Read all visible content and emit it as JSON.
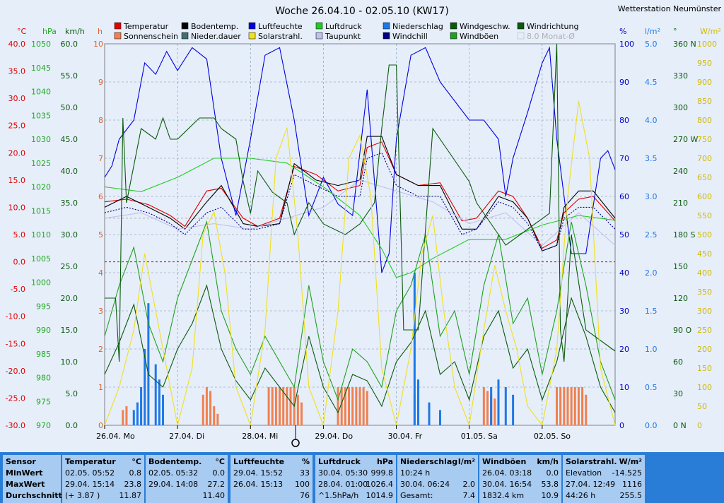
{
  "title": "Woche 26.04.10 - 02.05.10 (KW17)",
  "station": "Wetterstation Neumünster",
  "legend": [
    {
      "label": "Temperatur",
      "color": "#e00000"
    },
    {
      "label": "Bodentemp.",
      "color": "#000000"
    },
    {
      "label": "Luftfeuchte",
      "color": "#0000e0"
    },
    {
      "label": "Luftdruck",
      "color": "#22cc22"
    },
    {
      "label": "Niederschlag",
      "color": "#1e78e6"
    },
    {
      "label": "Windgeschw.",
      "color": "#0a5a0a"
    },
    {
      "label": "Windrichtung",
      "color": "#0a5a0a"
    },
    {
      "label": "Sonnenschein",
      "color": "#f08050"
    },
    {
      "label": "Nieder.dauer",
      "color": "#407070"
    },
    {
      "label": "Solarstrahl.",
      "color": "#f0e020"
    },
    {
      "label": "Taupunkt",
      "color": "#c0c0f0"
    },
    {
      "label": "Windchill",
      "color": "#000080"
    },
    {
      "label": "Windböen",
      "color": "#20a020"
    },
    {
      "label": "8.0 Monat-Ø",
      "color": "#b0b0b0"
    }
  ],
  "axis_units": {
    "temp": "°C",
    "pressure": "hPa",
    "wind": "km/h",
    "hours": "h",
    "humidity": "%",
    "rain": "l/m²",
    "direction": "°",
    "solar": "W/m²"
  },
  "axes": {
    "temp": [
      "40.0",
      "35.0",
      "30.0",
      "25.0",
      "20.0",
      "15.0",
      "10.0",
      "5.0",
      "0.0",
      "-5.0",
      "-10.0",
      "-15.0",
      "-20.0",
      "-25.0",
      "-30.0"
    ],
    "pressure": [
      "1050",
      "1045",
      "1040",
      "1035",
      "1030",
      "1025",
      "1020",
      "1015",
      "1010",
      "1005",
      "1000",
      "995",
      "990",
      "985",
      "980",
      "975",
      "970"
    ],
    "wind": [
      "60.0",
      "55.0",
      "50.0",
      "45.0",
      "40.0",
      "35.0",
      "30.0",
      "25.0",
      "20.0",
      "15.0",
      "10.0",
      "5.0",
      "0.0"
    ],
    "hours": [
      "10",
      "9",
      "8",
      "7",
      "6",
      "5",
      "4",
      "3",
      "2",
      "1",
      "0"
    ],
    "humidity": [
      "100",
      "90",
      "80",
      "70",
      "60",
      "50",
      "40",
      "30",
      "20",
      "10",
      "0"
    ],
    "rain": [
      "5.0",
      "4.5",
      "4.0",
      "3.5",
      "3.0",
      "2.5",
      "2.0",
      "1.5",
      "1.0",
      "0.5",
      "0.0"
    ],
    "direction": [
      "360 N",
      "330",
      "300",
      "270 W",
      "240",
      "210",
      "180 S",
      "150",
      "120",
      "90 O",
      "60",
      "30",
      "0 N"
    ],
    "solar": [
      "1000",
      "950",
      "900",
      "850",
      "800",
      "750",
      "700",
      "650",
      "600",
      "550",
      "500",
      "450",
      "400",
      "350",
      "300",
      "250",
      "200",
      "150",
      "100",
      "50",
      "0"
    ]
  },
  "x_labels": [
    "26.04. Mo",
    "27.04. Di",
    "28.04. Mi",
    "29.04. Do",
    "30.04. Fr",
    "01.05. Sa",
    "02.05. So"
  ],
  "chart_data": {
    "type": "line",
    "x_range_days": [
      0,
      7
    ],
    "series": [
      {
        "name": "Temperatur",
        "axis": "temp",
        "color": "#e00000",
        "x": [
          0,
          0.3,
          0.6,
          0.9,
          1.1,
          1.4,
          1.6,
          1.9,
          2.1,
          2.4,
          2.6,
          2.9,
          3.2,
          3.5,
          3.6,
          3.8,
          4.0,
          4.3,
          4.6,
          4.9,
          5.1,
          5.4,
          5.6,
          5.8,
          6.0,
          6.2,
          6.3,
          6.5,
          6.7,
          7.0
        ],
        "y": [
          11,
          11.5,
          10.5,
          8.5,
          6.5,
          13,
          13.5,
          8.0,
          6.5,
          8.0,
          17.5,
          16,
          13,
          14,
          21,
          22,
          16,
          14,
          14.5,
          7.5,
          8.0,
          13,
          12,
          8,
          2.5,
          4,
          9,
          11.5,
          12,
          7.5
        ]
      },
      {
        "name": "Bodentemp.",
        "axis": "temp",
        "color": "#000000",
        "x": [
          0,
          0.3,
          0.6,
          0.9,
          1.1,
          1.4,
          1.6,
          1.9,
          2.1,
          2.4,
          2.6,
          2.9,
          3.2,
          3.5,
          3.6,
          3.8,
          4.0,
          4.3,
          4.6,
          4.9,
          5.1,
          5.4,
          5.6,
          5.8,
          6.0,
          6.2,
          6.3,
          6.5,
          6.7,
          7.0
        ],
        "y": [
          10,
          12,
          10,
          8,
          6,
          11,
          14,
          7,
          6.5,
          7,
          18,
          15,
          14,
          15,
          23,
          23,
          16,
          14,
          14,
          6,
          6,
          12,
          11,
          8,
          2,
          3,
          10,
          13,
          13,
          8
        ]
      },
      {
        "name": "Taupunkt",
        "axis": "temp",
        "color": "#c0c0f0",
        "x": [
          0,
          0.5,
          1.0,
          1.5,
          2.0,
          2.5,
          3.0,
          3.5,
          4.0,
          4.5,
          5.0,
          5.5,
          6.0,
          6.5,
          7.0
        ],
        "y": [
          8,
          9,
          6,
          7,
          6,
          8,
          10,
          15,
          13,
          11,
          7,
          9,
          3,
          9,
          3
        ]
      },
      {
        "name": "Windchill",
        "axis": "temp",
        "color": "#000080",
        "x": [
          0,
          0.3,
          0.6,
          0.9,
          1.1,
          1.4,
          1.6,
          1.9,
          2.1,
          2.4,
          2.6,
          2.9,
          3.2,
          3.5,
          3.6,
          3.8,
          4.0,
          4.3,
          4.6,
          4.9,
          5.1,
          5.4,
          5.6,
          5.8,
          6.0,
          6.2,
          6.3,
          6.5,
          6.7,
          7.0
        ],
        "y": [
          9,
          10,
          9,
          7,
          5,
          9,
          10,
          6,
          6,
          7,
          16,
          14,
          12,
          12,
          19,
          20,
          14,
          12,
          12,
          5,
          6,
          11,
          10,
          7,
          2,
          3,
          8,
          10,
          10,
          6
        ]
      },
      {
        "name": "Luftfeuchte",
        "axis": "humidity",
        "color": "#0000e0",
        "x": [
          0,
          0.1,
          0.2,
          0.4,
          0.55,
          0.7,
          0.85,
          1.0,
          1.2,
          1.4,
          1.6,
          1.8,
          2.0,
          2.2,
          2.4,
          2.6,
          2.8,
          3.0,
          3.2,
          3.4,
          3.6,
          3.8,
          3.9,
          4.0,
          4.2,
          4.4,
          4.6,
          4.8,
          5.0,
          5.2,
          5.4,
          5.5,
          5.6,
          5.8,
          6.0,
          6.1,
          6.2,
          6.4,
          6.6,
          6.8,
          6.9,
          7.0
        ],
        "y": [
          65,
          68,
          75,
          80,
          95,
          92,
          98,
          93,
          99,
          96,
          70,
          55,
          75,
          97,
          99,
          80,
          55,
          65,
          58,
          55,
          88,
          40,
          45,
          75,
          97,
          99,
          90,
          85,
          80,
          80,
          75,
          60,
          70,
          82,
          95,
          99,
          75,
          45,
          45,
          70,
          72,
          67
        ]
      },
      {
        "name": "Luftdruck",
        "axis": "pressure",
        "color": "#22cc22",
        "x": [
          0,
          0.5,
          1.0,
          1.5,
          2.0,
          2.5,
          3.0,
          3.5,
          3.8,
          4.0,
          4.2,
          4.5,
          5.0,
          5.5,
          6.0,
          6.5,
          7.0
        ],
        "y": [
          1020,
          1019,
          1022,
          1026,
          1026,
          1025,
          1020,
          1014,
          1007,
          1001,
          1002,
          1005,
          1009,
          1009,
          1012,
          1014,
          1013
        ]
      },
      {
        "name": "Windgeschw.",
        "axis": "wind",
        "color": "#0a5a0a",
        "x": [
          0,
          0.2,
          0.4,
          0.6,
          0.8,
          1.0,
          1.2,
          1.4,
          1.6,
          1.8,
          2.0,
          2.2,
          2.4,
          2.6,
          2.8,
          3.0,
          3.2,
          3.4,
          3.6,
          3.8,
          4.0,
          4.2,
          4.4,
          4.6,
          4.8,
          5.0,
          5.2,
          5.4,
          5.6,
          5.8,
          6.0,
          6.2,
          6.4,
          6.6,
          6.8,
          7.0
        ],
        "y": [
          8,
          13,
          19,
          8,
          6,
          12,
          16,
          22,
          12,
          7,
          4,
          9,
          6,
          3,
          14,
          6,
          2,
          8,
          7,
          3,
          10,
          13,
          18,
          8,
          10,
          4,
          14,
          18,
          9,
          12,
          4,
          10,
          20,
          14,
          6,
          2
        ]
      },
      {
        "name": "Windböen",
        "axis": "wind",
        "color": "#20a020",
        "x": [
          0,
          0.2,
          0.4,
          0.6,
          0.8,
          1.0,
          1.2,
          1.4,
          1.6,
          1.8,
          2.0,
          2.2,
          2.4,
          2.6,
          2.8,
          3.0,
          3.2,
          3.4,
          3.6,
          3.8,
          4.0,
          4.2,
          4.4,
          4.6,
          4.8,
          5.0,
          5.2,
          5.4,
          5.6,
          5.8,
          6.0,
          6.2,
          6.4,
          6.6,
          6.8,
          7.0
        ],
        "y": [
          14,
          22,
          28,
          16,
          10,
          20,
          26,
          32,
          18,
          12,
          8,
          14,
          10,
          6,
          22,
          10,
          4,
          12,
          10,
          6,
          18,
          22,
          30,
          14,
          18,
          8,
          22,
          30,
          16,
          20,
          8,
          18,
          32,
          22,
          10,
          4
        ]
      },
      {
        "name": "Windrichtung",
        "axis": "direction",
        "color": "#0a5a0a",
        "x": [
          0,
          0.15,
          0.2,
          0.25,
          0.3,
          0.5,
          0.7,
          0.8,
          0.9,
          1.0,
          1.3,
          1.5,
          1.6,
          1.8,
          1.9,
          2.0,
          2.1,
          2.3,
          2.5,
          2.6,
          2.8,
          3.0,
          3.3,
          3.5,
          3.7,
          3.8,
          3.9,
          4.0,
          4.1,
          4.2,
          4.3,
          4.5,
          4.7,
          4.9,
          5.0,
          5.1,
          5.3,
          5.5,
          5.7,
          5.9,
          6.1,
          6.2,
          6.25,
          6.3,
          6.4,
          6.6,
          6.8,
          7.0
        ],
        "y": [
          120,
          120,
          60,
          290,
          210,
          280,
          270,
          290,
          270,
          270,
          290,
          290,
          280,
          270,
          230,
          200,
          240,
          220,
          210,
          180,
          210,
          190,
          180,
          190,
          210,
          280,
          340,
          340,
          90,
          90,
          90,
          280,
          260,
          240,
          230,
          210,
          190,
          170,
          180,
          190,
          200,
          360,
          90,
          60,
          180,
          90,
          80,
          70
        ]
      },
      {
        "name": "Solarstrahl.",
        "axis": "solar",
        "color": "#f0e020",
        "x": [
          0,
          0.2,
          0.4,
          0.55,
          0.7,
          0.85,
          1.0,
          1.2,
          1.35,
          1.5,
          1.65,
          1.8,
          2.0,
          2.2,
          2.35,
          2.5,
          2.65,
          2.8,
          3.0,
          3.2,
          3.35,
          3.5,
          3.65,
          3.8,
          4.0,
          4.2,
          4.35,
          4.5,
          4.65,
          4.8,
          5.0,
          5.2,
          5.35,
          5.5,
          5.65,
          5.8,
          6.0,
          6.2,
          6.35,
          6.5,
          6.65,
          6.8,
          7.0
        ],
        "y": [
          0,
          100,
          250,
          450,
          300,
          150,
          0,
          150,
          500,
          560,
          400,
          100,
          0,
          250,
          700,
          780,
          500,
          100,
          0,
          300,
          700,
          760,
          600,
          150,
          0,
          200,
          450,
          550,
          300,
          100,
          0,
          250,
          420,
          300,
          200,
          50,
          0,
          200,
          600,
          850,
          700,
          150,
          0
        ]
      }
    ],
    "bars": [
      {
        "name": "Sonnenschein",
        "axis": "hours",
        "color": "#f08050",
        "x": [
          0.25,
          0.3,
          1.35,
          1.4,
          1.45,
          1.5,
          1.55,
          2.25,
          2.3,
          2.35,
          2.4,
          2.45,
          2.5,
          2.55,
          2.6,
          2.65,
          2.7,
          3.2,
          3.25,
          3.3,
          3.35,
          3.4,
          3.45,
          3.5,
          3.55,
          3.6,
          4.25,
          4.3,
          5.2,
          5.25,
          5.3,
          5.35,
          6.2,
          6.25,
          6.3,
          6.35,
          6.4,
          6.45,
          6.5,
          6.55,
          6.6
        ],
        "values": [
          0.4,
          0.5,
          0.8,
          1.0,
          0.9,
          0.5,
          0.3,
          1.0,
          1.0,
          1.0,
          1.0,
          1.0,
          1.0,
          1.0,
          1.0,
          0.8,
          0.6,
          1.0,
          1.0,
          1.0,
          1.0,
          1.0,
          1.0,
          1.0,
          1.0,
          0.9,
          0.8,
          0.6,
          1.0,
          0.9,
          0.8,
          0.7,
          1.0,
          1.0,
          1.0,
          1.0,
          1.0,
          1.0,
          1.0,
          1.0,
          0.8
        ]
      },
      {
        "name": "Niederschlag",
        "axis": "rain",
        "color": "#1e78e6",
        "x": [
          0.4,
          0.45,
          0.5,
          0.55,
          0.6,
          0.7,
          0.75,
          0.8,
          4.25,
          4.3,
          4.45,
          4.6,
          5.3,
          5.4,
          5.5,
          5.6
        ],
        "values": [
          0.2,
          0.3,
          0.5,
          1.0,
          1.6,
          0.8,
          0.6,
          0.4,
          2.0,
          0.6,
          0.3,
          0.2,
          0.5,
          0.6,
          0.5,
          0.4
        ]
      }
    ],
    "reference_lines": [
      {
        "axis": "temp",
        "value": 0,
        "color": "#e00000"
      },
      {
        "axis": "temp",
        "value": 8,
        "color": "#b0b0b0"
      }
    ]
  },
  "stats": [
    {
      "sensor": "Sensor",
      "rows": [
        "MinWert",
        "MaxWert",
        "Durchschnitt"
      ]
    },
    {
      "name": "Temperatur",
      "unit": "°C",
      "rows": [
        [
          "02.05.  05:52",
          "0.8"
        ],
        [
          "29.04.  15:14",
          "23.8"
        ],
        [
          "(+ 3.87 )",
          "11.87"
        ]
      ]
    },
    {
      "name": "Bodentemp.",
      "unit": "°C",
      "rows": [
        [
          "02.05.  05:32",
          "0.0"
        ],
        [
          "29.04.  14:08",
          "27.2"
        ],
        [
          "",
          "11.40"
        ]
      ]
    },
    {
      "name": "Luftfeuchte",
      "unit": "%",
      "rows": [
        [
          "29.04.  15:52",
          "33"
        ],
        [
          "26.04.  15:13",
          "100"
        ],
        [
          "",
          "76"
        ]
      ]
    },
    {
      "name": "Luftdruck",
      "unit": "hPa",
      "rows": [
        [
          "30.04.  05:30",
          "999.8"
        ],
        [
          "28.04.  01:00",
          "1026.4"
        ],
        [
          "^1.5hPa/h",
          "1014.9"
        ]
      ]
    },
    {
      "name": "Niederschlag",
      "unit": "l/m²",
      "rows": [
        [
          "10:24 h",
          ""
        ],
        [
          "30.04.  06:24",
          "2.0"
        ],
        [
          "Gesamt:",
          "7.4"
        ]
      ]
    },
    {
      "name": "Windböen",
      "unit": "km/h",
      "rows": [
        [
          "26.04.  03:18",
          "0.0"
        ],
        [
          "30.04.  16:54",
          "53.8"
        ],
        [
          "1832.4 km",
          "10.9"
        ]
      ]
    },
    {
      "name": "Solarstrahl.",
      "unit": "W/m²",
      "rows": [
        [
          "Elevation",
          "-14.525"
        ],
        [
          "27.04.  12:49",
          "1116"
        ],
        [
          "44:26 h",
          "255.5"
        ]
      ]
    }
  ]
}
